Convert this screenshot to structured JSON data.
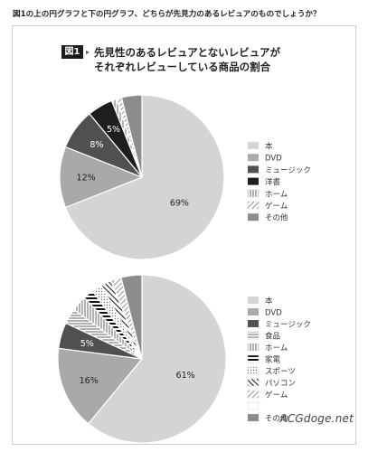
{
  "question": "図1の上の円グラフと下の円グラフ、どちらが先見力のあるレビュアのものでしょうか？",
  "figure": {
    "badge": "図1",
    "title_line1": "先見性のあるレビュアとないレビュアが",
    "title_line2": "それぞれレビューしている商品の割合"
  },
  "watermark": "ACGdoge.net",
  "chart_data": [
    {
      "type": "pie",
      "title": "",
      "slices": [
        {
          "label": "本",
          "value": 69,
          "value_label": "69%",
          "color": "#d4d4d4",
          "pattern": "solid"
        },
        {
          "label": "DVD",
          "value": 12,
          "value_label": "12%",
          "color": "#a9a9a9",
          "pattern": "solid"
        },
        {
          "label": "ミュージック",
          "value": 8,
          "value_label": "8%",
          "color": "#505050",
          "pattern": "solid"
        },
        {
          "label": "洋書",
          "value": 5,
          "value_label": "5%",
          "color": "#1e1e1e",
          "pattern": "solid"
        },
        {
          "label": "ホーム",
          "value": 1,
          "value_label": "",
          "color": "#ffffff",
          "pattern": "vertical"
        },
        {
          "label": "ゲーム",
          "value": 1,
          "value_label": "",
          "color": "#ffffff",
          "pattern": "diagonal"
        },
        {
          "label": "その他",
          "value": 4,
          "value_label": "",
          "color": "#8c8c8c",
          "pattern": "solid"
        }
      ]
    },
    {
      "type": "pie",
      "title": "",
      "slices": [
        {
          "label": "本",
          "value": 61,
          "value_label": "61%",
          "color": "#d4d4d4",
          "pattern": "solid"
        },
        {
          "label": "DVD",
          "value": 16,
          "value_label": "16%",
          "color": "#a9a9a9",
          "pattern": "solid"
        },
        {
          "label": "ミュージック",
          "value": 5,
          "value_label": "5%",
          "color": "#505050",
          "pattern": "solid"
        },
        {
          "label": "食品",
          "value": 3,
          "value_label": "",
          "color": "#ffffff",
          "pattern": "horizontal"
        },
        {
          "label": "ホーム",
          "value": 3,
          "value_label": "",
          "color": "#ffffff",
          "pattern": "vertical"
        },
        {
          "label": "家電",
          "value": 2,
          "value_label": "",
          "color": "#ffffff",
          "pattern": "hbold"
        },
        {
          "label": "スポーツ",
          "value": 2,
          "value_label": "",
          "color": "#ffffff",
          "pattern": "dots"
        },
        {
          "label": "パソコン",
          "value": 2,
          "value_label": "",
          "color": "#ffffff",
          "pattern": "diagdark"
        },
        {
          "label": "ゲーム",
          "value": 2,
          "value_label": "",
          "color": "#ffffff",
          "pattern": "diagonal"
        },
        {
          "label": "",
          "value": 0,
          "value_label": "",
          "color": "#ffffff",
          "pattern": "solid"
        },
        {
          "label": "その他",
          "value": 4,
          "value_label": "",
          "color": "#8c8c8c",
          "pattern": "solid"
        }
      ]
    }
  ]
}
